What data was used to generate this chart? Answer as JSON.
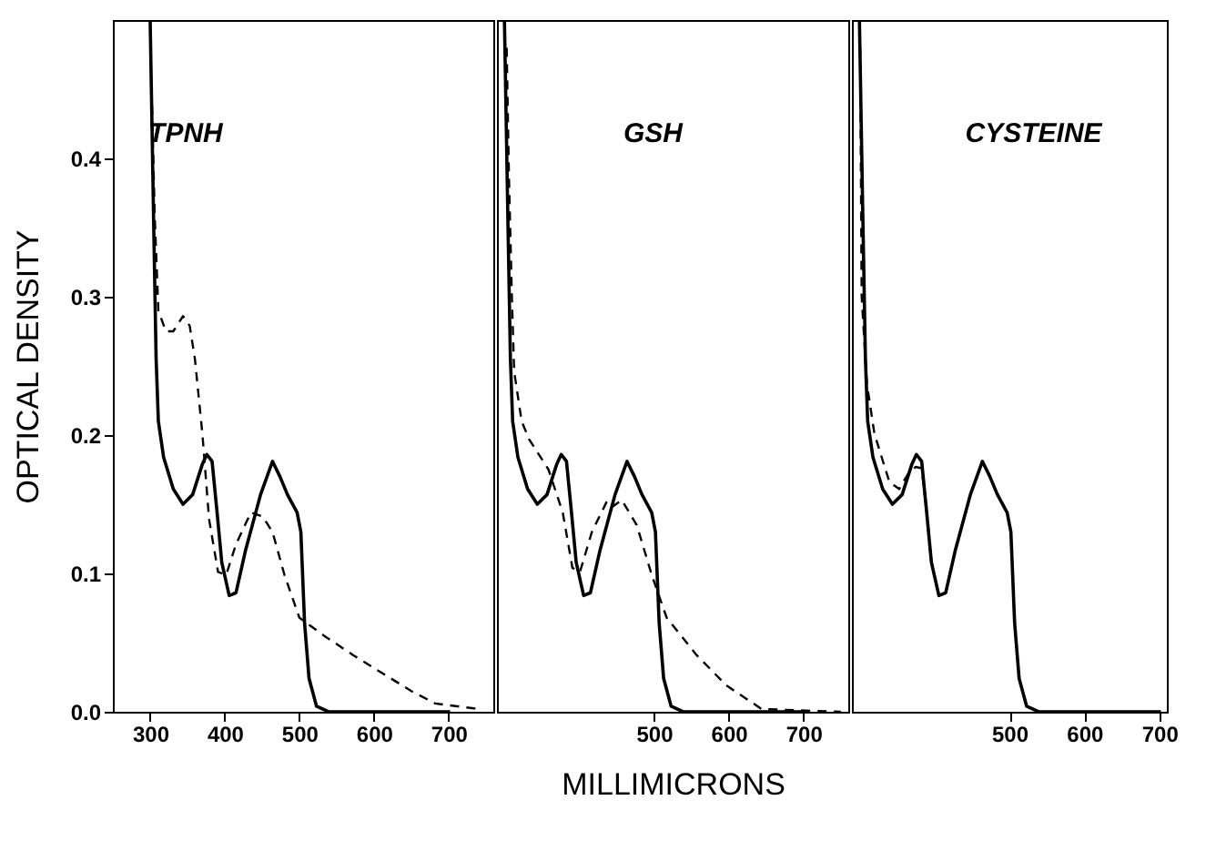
{
  "chart_data": [
    {
      "type": "line",
      "title": "TPNH",
      "ylabel": "OPTICAL DENSITY",
      "xlim": [
        250,
        760
      ],
      "xticks": [
        300,
        400,
        500,
        600,
        700
      ],
      "ylim": [
        0,
        0.5
      ],
      "yticks": [
        {
          "value": 0,
          "label": "0.0"
        },
        0.1,
        0.2,
        0.3,
        0.4
      ],
      "grid": false,
      "marker": "none",
      "series": [
        {
          "color": "#000000",
          "line_style": "solid",
          "x": [
            300,
            305,
            308,
            311,
            318,
            331,
            344,
            357,
            370,
            376,
            383,
            389,
            396,
            406,
            415,
            428,
            448,
            464,
            474,
            484,
            497,
            502,
            507,
            513,
            523,
            539,
            611,
            702
          ],
          "values": [
            0.5,
            0.344,
            0.255,
            0.21,
            0.184,
            0.161,
            0.15,
            0.157,
            0.179,
            0.186,
            0.181,
            0.148,
            0.108,
            0.084,
            0.086,
            0.117,
            0.157,
            0.181,
            0.17,
            0.157,
            0.144,
            0.13,
            0.064,
            0.024,
            0.004,
            0,
            0,
            0
          ]
        },
        {
          "color": "#000000",
          "line_style": "dashed",
          "x": [
            302,
            306,
            311,
            321,
            331,
            344,
            353,
            360,
            370,
            379,
            391,
            402,
            415,
            435,
            451,
            464,
            480,
            500,
            533,
            572,
            611,
            650,
            682,
            741
          ],
          "values": [
            0.45,
            0.36,
            0.29,
            0.275,
            0.275,
            0.286,
            0.279,
            0.255,
            0.201,
            0.139,
            0.101,
            0.099,
            0.121,
            0.144,
            0.141,
            0.13,
            0.099,
            0.068,
            0.055,
            0.041,
            0.028,
            0.015,
            0.006,
            0.002
          ]
        }
      ]
    },
    {
      "type": "line",
      "title": "GSH",
      "xlabel": "MILLIMICRONS",
      "xlim": [
        290,
        760
      ],
      "xticks": [
        500,
        600,
        700
      ],
      "ylim": [
        0,
        0.5
      ],
      "tick_labels": "x",
      "grid": false,
      "marker": "none",
      "series": [
        {
          "color": "#000000",
          "line_style": "solid",
          "x": [
            300,
            305,
            308,
            311,
            318,
            331,
            344,
            357,
            370,
            376,
            383,
            389,
            396,
            406,
            415,
            428,
            448,
            464,
            474,
            484,
            497,
            502,
            507,
            513,
            523,
            539,
            611,
            702
          ],
          "values": [
            0.5,
            0.344,
            0.255,
            0.21,
            0.184,
            0.161,
            0.15,
            0.157,
            0.179,
            0.186,
            0.181,
            0.148,
            0.108,
            0.084,
            0.086,
            0.117,
            0.157,
            0.181,
            0.17,
            0.157,
            0.144,
            0.13,
            0.064,
            0.024,
            0.004,
            0,
            0,
            0
          ]
        },
        {
          "color": "#000000",
          "line_style": "dashed",
          "x": [
            303,
            306,
            310,
            313,
            323,
            333,
            359,
            378,
            391,
            401,
            417,
            437,
            444,
            457,
            477,
            497,
            517,
            557,
            597,
            644,
            750
          ],
          "values": [
            0.48,
            0.388,
            0.299,
            0.246,
            0.21,
            0.197,
            0.175,
            0.144,
            0.104,
            0.101,
            0.13,
            0.152,
            0.148,
            0.153,
            0.135,
            0.099,
            0.068,
            0.041,
            0.019,
            0.002,
            0
          ]
        }
      ]
    },
    {
      "type": "line",
      "title": "CYSTEINE",
      "xlim": [
        290,
        710
      ],
      "xticks": [
        500,
        600,
        700
      ],
      "ylim": [
        0,
        0.5
      ],
      "tick_labels": "x",
      "grid": false,
      "marker": "none",
      "series": [
        {
          "color": "#000000",
          "line_style": "solid",
          "x": [
            300,
            305,
            308,
            311,
            318,
            331,
            344,
            357,
            370,
            376,
            383,
            389,
            396,
            406,
            415,
            428,
            448,
            464,
            474,
            484,
            497,
            502,
            507,
            513,
            523,
            539,
            611,
            702
          ],
          "values": [
            0.5,
            0.344,
            0.255,
            0.21,
            0.184,
            0.161,
            0.15,
            0.157,
            0.179,
            0.186,
            0.181,
            0.148,
            0.108,
            0.084,
            0.086,
            0.117,
            0.157,
            0.181,
            0.17,
            0.157,
            0.144,
            0.13,
            0.064,
            0.024,
            0.004,
            0,
            0,
            0
          ]
        },
        {
          "color": "#000000",
          "line_style": "dashed",
          "x": [
            301,
            303,
            310,
            320,
            340,
            353,
            365,
            375,
            383,
            389,
            396,
            406
          ],
          "values": [
            0.48,
            0.3,
            0.237,
            0.201,
            0.166,
            0.161,
            0.172,
            0.177,
            0.176,
            0.148,
            0.108,
            0.084
          ]
        }
      ]
    }
  ]
}
